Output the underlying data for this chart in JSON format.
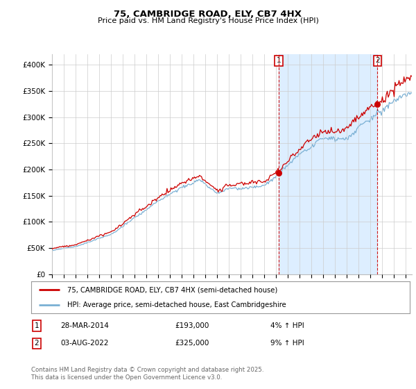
{
  "title": "75, CAMBRIDGE ROAD, ELY, CB7 4HX",
  "subtitle": "Price paid vs. HM Land Registry's House Price Index (HPI)",
  "ylabel_ticks": [
    "£0",
    "£50K",
    "£100K",
    "£150K",
    "£200K",
    "£250K",
    "£300K",
    "£350K",
    "£400K"
  ],
  "ylim": [
    0,
    420000
  ],
  "xlim_start": 1995.0,
  "xlim_end": 2025.5,
  "sale1_x": 2014.24,
  "sale1_y": 193000,
  "sale1_label": "1",
  "sale2_x": 2022.59,
  "sale2_y": 325000,
  "sale2_label": "2",
  "line_color_house": "#cc0000",
  "line_color_hpi": "#7ab0d4",
  "shade_color": "#ddeeff",
  "vline_color": "#cc0000",
  "legend_house": "75, CAMBRIDGE ROAD, ELY, CB7 4HX (semi-detached house)",
  "legend_hpi": "HPI: Average price, semi-detached house, East Cambridgeshire",
  "note1_label": "1",
  "note1_date": "28-MAR-2014",
  "note1_price": "£193,000",
  "note1_hpi": "4% ↑ HPI",
  "note2_label": "2",
  "note2_date": "03-AUG-2022",
  "note2_price": "£325,000",
  "note2_hpi": "9% ↑ HPI",
  "footer": "Contains HM Land Registry data © Crown copyright and database right 2025.\nThis data is licensed under the Open Government Licence v3.0.",
  "background_color": "#ffffff",
  "grid_color": "#cccccc"
}
